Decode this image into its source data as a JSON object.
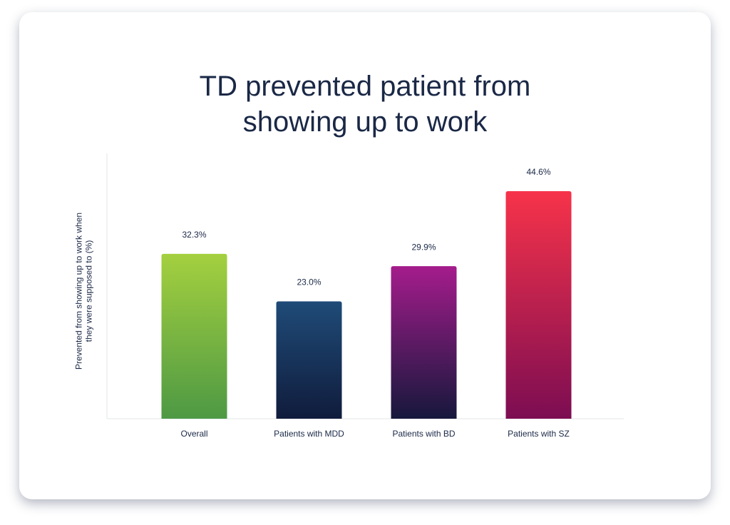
{
  "chart_data": {
    "type": "bar",
    "title": "TD prevented patient from showing up to work",
    "ylabel": "Prevented from showing up to work when they were supposed to (%)",
    "categories": [
      "Overall",
      "Patients with MDD",
      "Patients with BD",
      "Patients with SZ"
    ],
    "values": [
      32.3,
      23.0,
      29.9,
      44.6
    ],
    "value_labels": [
      "32.3%",
      "23.0%",
      "29.9%",
      "44.6%"
    ],
    "colors": [
      [
        "#a4d03f",
        "#4e9944"
      ],
      [
        "#1f4b78",
        "#101c3c"
      ],
      [
        "#a51c8c",
        "#16183c"
      ],
      [
        "#f7334a",
        "#7c0d52"
      ]
    ],
    "ylim": [
      0,
      52
    ]
  }
}
